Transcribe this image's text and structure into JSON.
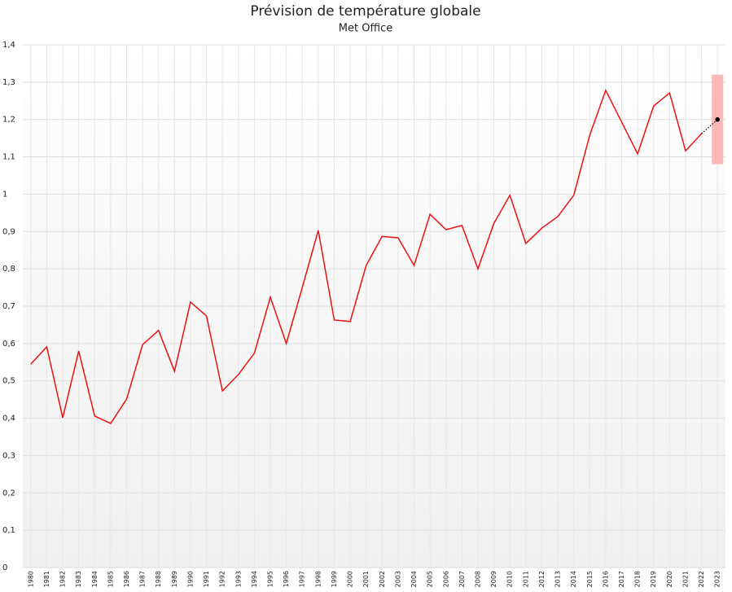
{
  "chart_data": {
    "type": "line",
    "title": "Prévision de température globale",
    "subtitle": "Met Office",
    "categories": [
      "1980",
      "1981",
      "1982",
      "1983",
      "1984",
      "1985",
      "1986",
      "1987",
      "1988",
      "1989",
      "1990",
      "1991",
      "1992",
      "1993",
      "1994",
      "1995",
      "1996",
      "1997",
      "1998",
      "1999",
      "2000",
      "2001",
      "2002",
      "2003",
      "2004",
      "2005",
      "2006",
      "2007",
      "2008",
      "2009",
      "2010",
      "2011",
      "2012",
      "2013",
      "2014",
      "2015",
      "2016",
      "2017",
      "2018",
      "2019",
      "2020",
      "2021",
      "2022",
      "2023"
    ],
    "series": [
      {
        "color": "#ee1111",
        "style": "solid",
        "values": [
          0.545,
          0.591,
          0.401,
          0.58,
          0.406,
          0.386,
          0.451,
          0.597,
          0.635,
          0.526,
          0.711,
          0.674,
          0.473,
          0.517,
          0.574,
          0.724,
          0.6,
          0.75,
          0.903,
          0.663,
          0.659,
          0.809,
          0.887,
          0.883,
          0.809,
          0.946,
          0.905,
          0.916,
          0.8,
          0.922,
          0.997,
          0.868,
          0.909,
          0.94,
          0.997,
          1.158,
          1.278,
          1.193,
          1.108,
          1.236,
          1.271,
          1.116,
          1.162,
          null
        ]
      },
      {
        "color": "#000000",
        "style": "dotted",
        "values": [
          null,
          null,
          null,
          null,
          null,
          null,
          null,
          null,
          null,
          null,
          null,
          null,
          null,
          null,
          null,
          null,
          null,
          null,
          null,
          null,
          null,
          null,
          null,
          null,
          null,
          null,
          null,
          null,
          null,
          null,
          null,
          null,
          null,
          null,
          null,
          null,
          null,
          null,
          null,
          null,
          null,
          null,
          1.162,
          1.2
        ],
        "band": {
          "low": 1.08,
          "high": 1.32,
          "color": "#fbb9b9"
        }
      }
    ],
    "ylim": [
      0,
      1.4
    ],
    "yticks": [
      0,
      {
        "value": 0.1,
        "label": "0,1"
      },
      {
        "value": 0.2,
        "label": "0,2"
      },
      {
        "value": 0.3,
        "label": "0,3"
      },
      {
        "value": 0.4,
        "label": "0,4"
      },
      {
        "value": 0.5,
        "label": "0,5"
      },
      {
        "value": 0.6,
        "label": "0,6"
      },
      {
        "value": 0.7,
        "label": "0,7"
      },
      {
        "value": 0.8,
        "label": "0,8"
      },
      {
        "value": 0.9,
        "label": "0,9"
      },
      1,
      {
        "value": 1.1,
        "label": "1,1"
      },
      {
        "value": 1.2,
        "label": "1,2"
      },
      {
        "value": 1.3,
        "label": "1,3"
      },
      {
        "value": 1.4,
        "label": "1,4"
      }
    ],
    "grid": true
  }
}
